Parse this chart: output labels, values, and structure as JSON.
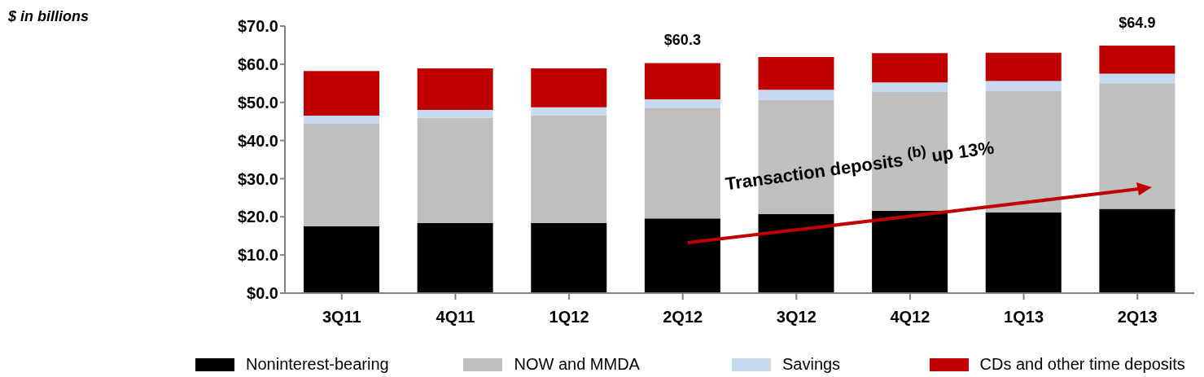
{
  "chart_data": {
    "type": "bar",
    "categories": [
      "3Q11",
      "4Q11",
      "1Q12",
      "2Q12",
      "3Q12",
      "4Q12",
      "1Q13",
      "2Q13"
    ],
    "stacked": true,
    "series": [
      {
        "name": "Noninterest-bearing",
        "color": "#000000",
        "values": [
          17.5,
          18.4,
          18.4,
          19.6,
          20.7,
          21.6,
          21.2,
          22.1
        ]
      },
      {
        "name": "NOW and MMDA",
        "color": "#bfbfbf",
        "values": [
          27.0,
          27.6,
          28.2,
          29.0,
          30.0,
          31.1,
          31.9,
          32.9
        ]
      },
      {
        "name": "Savings",
        "color": "#c6d9f1",
        "values": [
          2.0,
          2.0,
          2.1,
          2.2,
          2.6,
          2.5,
          2.5,
          2.5
        ]
      },
      {
        "name": "CDs and other time deposits",
        "color": "#c00000",
        "values": [
          11.7,
          10.9,
          10.2,
          9.5,
          8.6,
          7.7,
          7.4,
          7.4
        ]
      }
    ],
    "totals": [
      null,
      null,
      null,
      "$60.3",
      null,
      null,
      null,
      "$64.9"
    ],
    "ylim": [
      0,
      70
    ],
    "yticks": [
      {
        "value": 0,
        "label": "$0.0"
      },
      {
        "value": 10,
        "label": "$10.0"
      },
      {
        "value": 20,
        "label": "$20.0"
      },
      {
        "value": 30,
        "label": "$30.0"
      },
      {
        "value": 40,
        "label": "$40.0"
      },
      {
        "value": 50,
        "label": "$50.0"
      },
      {
        "value": 60,
        "label": "$60.0"
      },
      {
        "value": 70,
        "label": "$70.0"
      }
    ],
    "legend": "bottom",
    "annotations": [
      "$ in billions",
      "Transaction deposits $^{(b)}$ up 13%"
    ]
  }
}
